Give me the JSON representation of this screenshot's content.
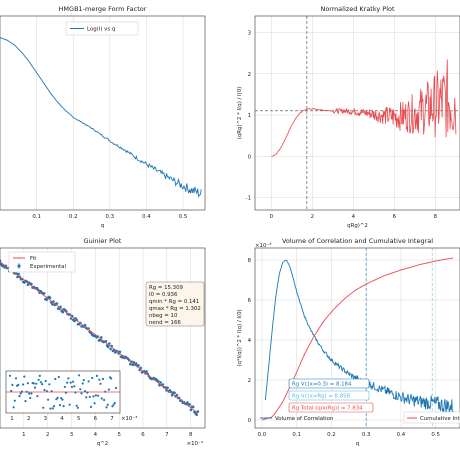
{
  "chart_data": [
    {
      "type": "line",
      "title": "HMGB1-merge Form Factor",
      "xlabel": "q",
      "ylabel": "",
      "x_ticks": [
        "0.1",
        "0.2",
        "0.3",
        "0.4",
        "0.5"
      ],
      "y_ticks": [],
      "xlim": [
        0.0,
        0.56
      ],
      "ylim": [
        -3.2,
        0.4
      ],
      "legend": {
        "placement": "top-center",
        "entries": [
          "Log(I) vs q"
        ]
      },
      "grid": true,
      "series": [
        {
          "name": "Log(I) vs q",
          "color": "#1f77b4",
          "x": [
            0.0,
            0.02,
            0.04,
            0.06,
            0.08,
            0.1,
            0.12,
            0.14,
            0.16,
            0.18,
            0.2,
            0.22,
            0.25,
            0.28,
            0.31,
            0.34,
            0.37,
            0.4,
            0.43,
            0.46,
            0.49,
            0.52,
            0.55
          ],
          "y": [
            0.0,
            -0.05,
            -0.14,
            -0.28,
            -0.45,
            -0.65,
            -0.85,
            -1.05,
            -1.22,
            -1.36,
            -1.48,
            -1.56,
            -1.68,
            -1.82,
            -1.96,
            -2.08,
            -2.22,
            -2.35,
            -2.48,
            -2.6,
            -2.72,
            -2.82,
            -2.9
          ]
        }
      ]
    },
    {
      "type": "line",
      "title": "Normalized Kratky Plot",
      "xlabel": "qRg)^2",
      "ylabel": "(qRg)^2 * I(q) / I(0)",
      "x_ticks": [
        "0",
        "2",
        "4",
        "6",
        "8"
      ],
      "y_ticks": [
        "-1",
        "0",
        "1",
        "2",
        "3"
      ],
      "xlim": [
        -0.8,
        9.2
      ],
      "ylim": [
        -1.3,
        3.4
      ],
      "grid": true,
      "reference_lines": {
        "vertical_x": 1.73,
        "horizontal_y": 1.104
      },
      "series": [
        {
          "name": "",
          "color": "#e84a4f",
          "x": [
            0,
            0.2,
            0.4,
            0.6,
            0.8,
            1.0,
            1.2,
            1.4,
            1.6,
            1.8,
            2.0,
            2.5,
            3.0,
            3.5,
            4.0,
            4.5,
            5.0,
            5.5,
            6.0,
            6.5,
            7.0,
            7.5,
            8.0,
            8.5,
            9.0
          ],
          "y": [
            0,
            0.04,
            0.16,
            0.34,
            0.55,
            0.76,
            0.93,
            1.05,
            1.12,
            1.15,
            1.15,
            1.12,
            1.1,
            1.1,
            1.09,
            1.06,
            1.02,
            0.98,
            0.96,
            0.98,
            1.05,
            1.15,
            1.25,
            1.35,
            1.45
          ]
        }
      ]
    },
    {
      "type": "scatter",
      "title": "Guinier Plot",
      "xlabel": "q^2",
      "ylabel": "",
      "x_ticks": [
        "1",
        "2",
        "3",
        "4",
        "5",
        "6",
        "7",
        "8"
      ],
      "x_multiplier": "×10⁻³",
      "xlim": [
        0.0,
        8.6
      ],
      "ylim": [
        -1.45,
        0.12
      ],
      "legend": {
        "placement": "top-right",
        "entries": [
          "Fit",
          "Experimental"
        ]
      },
      "grid": true,
      "fit_box": [
        "Rg = 15.309",
        "I0 = 0.936",
        "qmin * Rg = 0.141",
        "qmax * Rg = 1.302",
        "nbeg = 10",
        "nend = 166"
      ],
      "inset": {
        "x_ticks": [
          "1",
          "2",
          "3",
          "4",
          "5",
          "6",
          "7"
        ],
        "x_multiplier": "×10⁻³",
        "type": "residuals"
      },
      "series": [
        {
          "name": "Fit",
          "color": "#e84a4f",
          "x": [
            0.0,
            8.3
          ],
          "y": [
            0.0,
            -1.32
          ]
        },
        {
          "name": "Experimental",
          "color": "#1f77b4",
          "x": [
            0.0,
            0.5,
            1.0,
            1.5,
            2.0,
            2.5,
            3.0,
            3.5,
            4.0,
            4.5,
            5.0,
            5.5,
            6.0,
            6.5,
            7.0,
            7.5,
            8.0,
            8.3
          ],
          "y": [
            0.0,
            -0.08,
            -0.16,
            -0.24,
            -0.32,
            -0.4,
            -0.48,
            -0.56,
            -0.64,
            -0.72,
            -0.8,
            -0.88,
            -0.95,
            -1.03,
            -1.11,
            -1.19,
            -1.27,
            -1.32
          ]
        }
      ]
    },
    {
      "type": "line",
      "title": "Volume of Correlation and Cumulative Integral",
      "xlabel": "q",
      "ylabel": "(q*I(q))^2 * I(q) / I(0)",
      "y_multiplier": "×10⁻³",
      "x_ticks": [
        "0.0",
        "0.1",
        "0.2",
        "0.3",
        "0.4",
        "0.5"
      ],
      "y_ticks": [
        "0",
        "2",
        "4",
        "6",
        "8"
      ],
      "xlim": [
        -0.02,
        0.57
      ],
      "ylim": [
        -0.4,
        8.6
      ],
      "grid": true,
      "reference_lines": {
        "vertical_x": [
          0.3,
          0.49
        ]
      },
      "annotations": [
        "Rg Vc(x=0.3) = 8.184",
        "Rg Vc(x=Rg) = 8.858",
        "Rg Total (q/x(Rg)) = 7.834"
      ],
      "legend": {
        "placement": "bottom",
        "entries": [
          "Volume of Correlation",
          "Cumulative Integral"
        ]
      },
      "series": [
        {
          "name": "Volume of Correlation",
          "color": "#1f77b4",
          "x": [
            0.01,
            0.02,
            0.03,
            0.04,
            0.05,
            0.06,
            0.07,
            0.08,
            0.09,
            0.1,
            0.12,
            0.14,
            0.16,
            0.18,
            0.2,
            0.22,
            0.25,
            0.28,
            0.31,
            0.34,
            0.37,
            0.4,
            0.43,
            0.46,
            0.49,
            0.52,
            0.55
          ],
          "y": [
            1.0,
            2.8,
            4.6,
            6.2,
            7.3,
            7.9,
            8.0,
            7.7,
            7.1,
            6.4,
            5.3,
            4.5,
            3.9,
            3.4,
            3.0,
            2.7,
            2.3,
            2.0,
            1.8,
            1.55,
            1.35,
            1.15,
            1.0,
            0.9,
            0.85,
            0.75,
            0.65
          ]
        },
        {
          "name": "Cumulative Integral",
          "color": "#e84a4f",
          "x": [
            0.0,
            0.03,
            0.06,
            0.09,
            0.12,
            0.15,
            0.18,
            0.21,
            0.24,
            0.27,
            0.3,
            0.35,
            0.4,
            0.45,
            0.5,
            0.55
          ],
          "y": [
            0.0,
            0.15,
            0.9,
            2.0,
            3.2,
            4.2,
            5.0,
            5.6,
            6.1,
            6.5,
            6.8,
            7.2,
            7.5,
            7.75,
            7.95,
            8.1
          ]
        }
      ]
    }
  ]
}
